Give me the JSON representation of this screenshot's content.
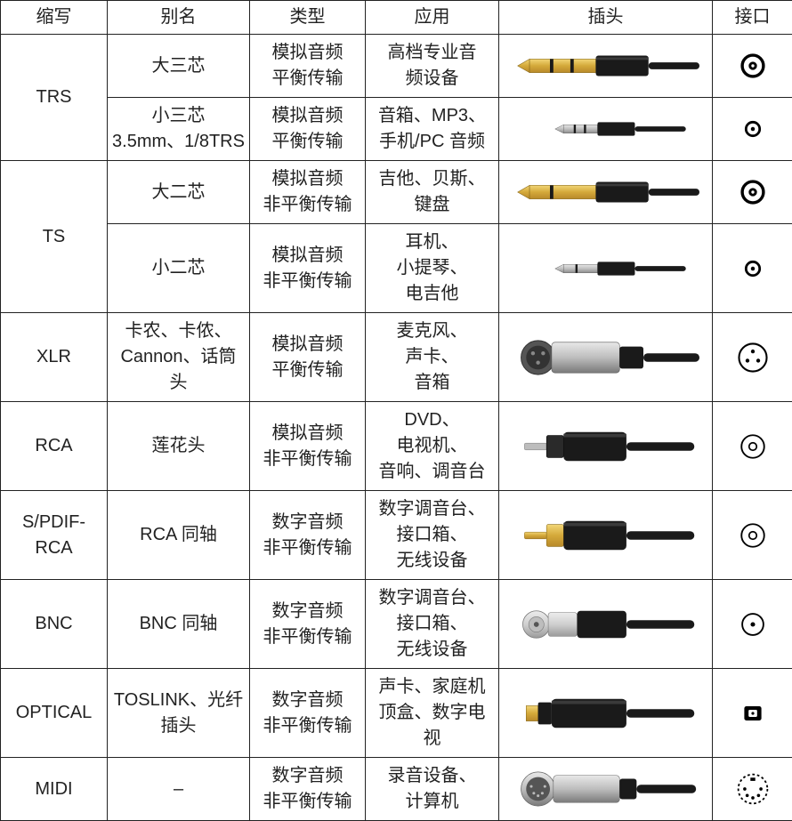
{
  "headers": {
    "abbr": "缩写",
    "alias": "别名",
    "type": "类型",
    "app": "应用",
    "plug": "插头",
    "jack": "接口"
  },
  "colors": {
    "border": "#222222",
    "text": "#222222",
    "gold": "#d4a93a",
    "goldDark": "#b8892a",
    "silver": "#c0c0c0",
    "silverDark": "#8a8a8a",
    "black": "#1a1a1a",
    "blackHi": "#3a3a3a",
    "white": "#ffffff"
  },
  "rows": [
    {
      "abbr": "TRS",
      "rowspan": 2,
      "sub": [
        {
          "alias": "大三芯",
          "type": [
            "模拟音频",
            "平衡传输"
          ],
          "app": [
            "高档专业音",
            "频设备"
          ],
          "plug": "trs-large",
          "jack": "jack-large-ring"
        },
        {
          "alias": [
            "小三芯",
            "3.5mm、1/8TRS"
          ],
          "type": [
            "模拟音频",
            "平衡传输"
          ],
          "app": [
            "音箱、MP3、",
            "手机/PC 音频"
          ],
          "plug": "trs-small",
          "jack": "jack-small-ring"
        }
      ]
    },
    {
      "abbr": "TS",
      "rowspan": 2,
      "sub": [
        {
          "alias": "大二芯",
          "type": [
            "模拟音频",
            "非平衡传输"
          ],
          "app": [
            "吉他、贝斯、",
            "键盘"
          ],
          "plug": "ts-large",
          "jack": "jack-large-ring"
        },
        {
          "alias": "小二芯",
          "type": [
            "模拟音频",
            "非平衡传输"
          ],
          "app": [
            "耳机、",
            "小提琴、",
            "电吉他"
          ],
          "plug": "ts-small",
          "jack": "jack-small-ring"
        }
      ]
    },
    {
      "abbr": "XLR",
      "sub": [
        {
          "alias": [
            "卡农、卡侬、",
            "Cannon、话筒",
            "头"
          ],
          "type": [
            "模拟音频",
            "平衡传输"
          ],
          "app": [
            "麦克风、",
            "声卡、",
            "音箱"
          ],
          "plug": "xlr",
          "jack": "jack-xlr"
        }
      ]
    },
    {
      "abbr": "RCA",
      "sub": [
        {
          "alias": "莲花头",
          "type": [
            "模拟音频",
            "非平衡传输"
          ],
          "app": [
            "DVD、",
            "电视机、",
            "音响、调音台"
          ],
          "plug": "rca-black",
          "jack": "jack-circle"
        }
      ]
    },
    {
      "abbr": "S/PDIF-RCA",
      "sub": [
        {
          "alias": "RCA 同轴",
          "type": [
            "数字音频",
            "非平衡传输"
          ],
          "app": [
            "数字调音台、",
            "接口箱、",
            "无线设备"
          ],
          "plug": "rca-gold",
          "jack": "jack-circle"
        }
      ]
    },
    {
      "abbr": "BNC",
      "sub": [
        {
          "alias": "BNC 同轴",
          "type": [
            "数字音频",
            "非平衡传输"
          ],
          "app": [
            "数字调音台、",
            "接口箱、",
            "无线设备"
          ],
          "plug": "bnc",
          "jack": "jack-bnc"
        }
      ]
    },
    {
      "abbr": "OPTICAL",
      "sub": [
        {
          "alias": [
            "TOSLINK、光纤",
            "插头"
          ],
          "type": [
            "数字音频",
            "非平衡传输"
          ],
          "app": [
            "声卡、家庭机",
            "顶盒、数字电",
            "视"
          ],
          "plug": "optical",
          "jack": "jack-optical"
        }
      ]
    },
    {
      "abbr": "MIDI",
      "sub": [
        {
          "alias": "–",
          "type": [
            "数字音频",
            "非平衡传输"
          ],
          "app": [
            "录音设备、",
            "计算机"
          ],
          "plug": "midi",
          "jack": "jack-midi"
        }
      ]
    }
  ]
}
